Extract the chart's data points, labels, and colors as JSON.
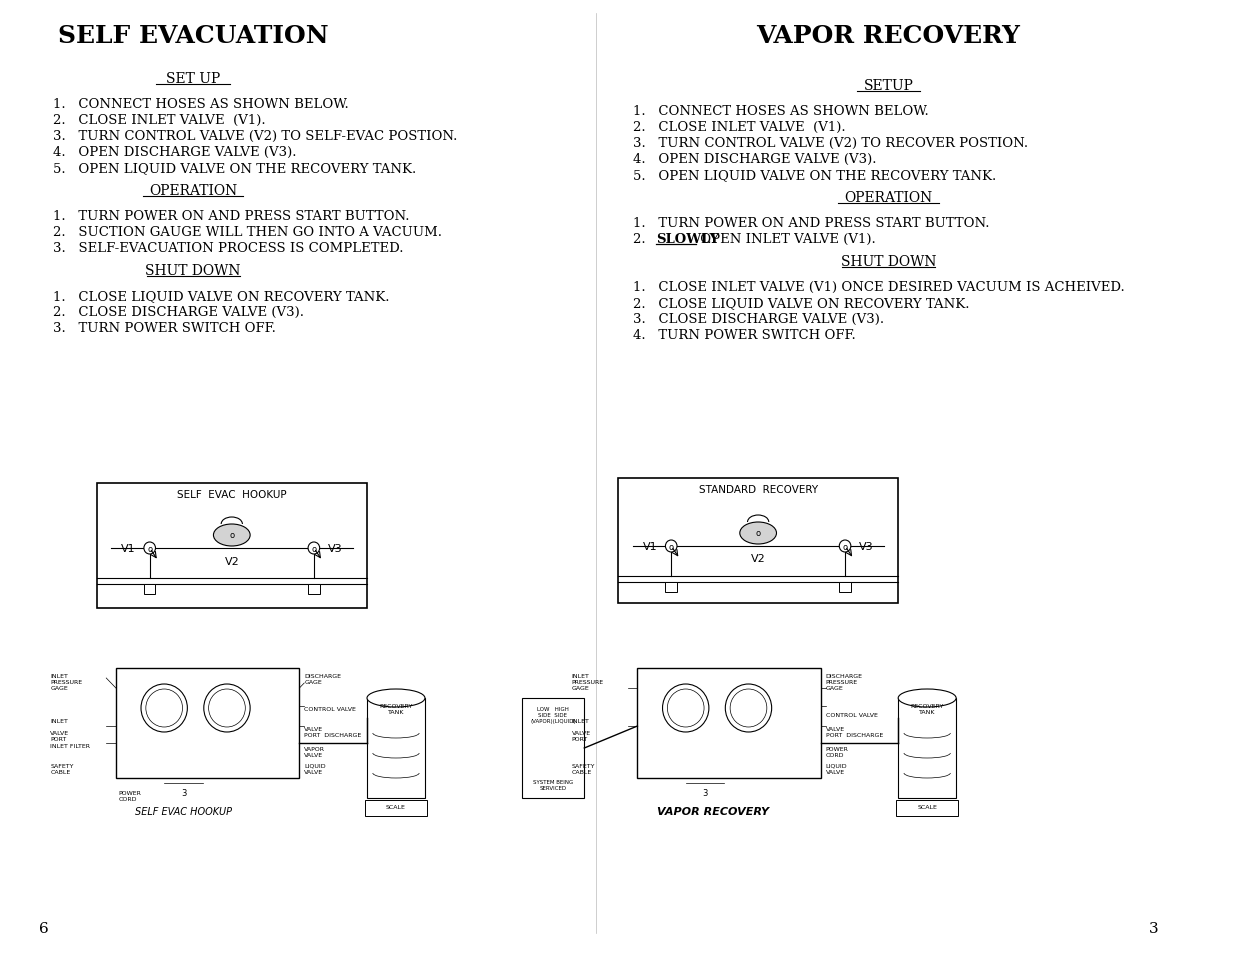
{
  "bg_color": "#ffffff",
  "left_title": "SELF EVACUATION",
  "right_title": "VAPOR RECOVERY",
  "left_setup_header": "SET UP",
  "left_setup_items": [
    "CONNECT HOSES AS SHOWN BELOW.",
    "CLOSE INLET VALVE  (V1).",
    "TURN CONTROL VALVE (V2) TO SELF-EVAC POSTION.",
    "OPEN DISCHARGE VALVE (V3).",
    "OPEN LIQUID VALVE ON THE RECOVERY TANK."
  ],
  "left_operation_header": "OPERATION",
  "left_operation_items": [
    "TURN POWER ON AND PRESS START BUTTON.",
    "SUCTION GAUGE WILL THEN GO INTO A VACUUM.",
    "SELF-EVACUATION PROCESS IS COMPLETED."
  ],
  "left_shutdown_header": "SHUT DOWN",
  "left_shutdown_items": [
    "CLOSE LIQUID VALVE ON RECOVERY TANK.",
    "CLOSE DISCHARGE VALVE (V3).",
    "TURN POWER SWITCH OFF."
  ],
  "right_setup_header": "SETUP",
  "right_setup_items": [
    "CONNECT HOSES AS SHOWN BELOW.",
    "CLOSE INLET VALVE  (V1).",
    "TURN CONTROL VALVE (V2) TO RECOVER POSTION.",
    "OPEN DISCHARGE VALVE (V3).",
    "OPEN LIQUID VALVE ON THE RECOVERY TANK."
  ],
  "right_operation_header": "OPERATION",
  "right_operation_item1": "TURN POWER ON AND PRESS START BUTTON.",
  "right_operation_item2_bold": "SLOWLY",
  "right_operation_item2_rest": " OPEN INLET VALVE (V1).",
  "right_shutdown_header": "SHUT DOWN",
  "right_shutdown_items": [
    "CLOSE INLET VALVE (V1) ONCE DESIRED VACUUM IS ACHEIVED.",
    "CLOSE LIQUID VALVE ON RECOVERY TANK.",
    "CLOSE DISCHARGE VALVE (V3).",
    "TURN POWER SWITCH OFF."
  ],
  "page_left": "6",
  "page_right": "3",
  "font_color": "#000000",
  "title_fontsize": 16,
  "header_fontsize": 10,
  "body_fontsize": 9.5
}
